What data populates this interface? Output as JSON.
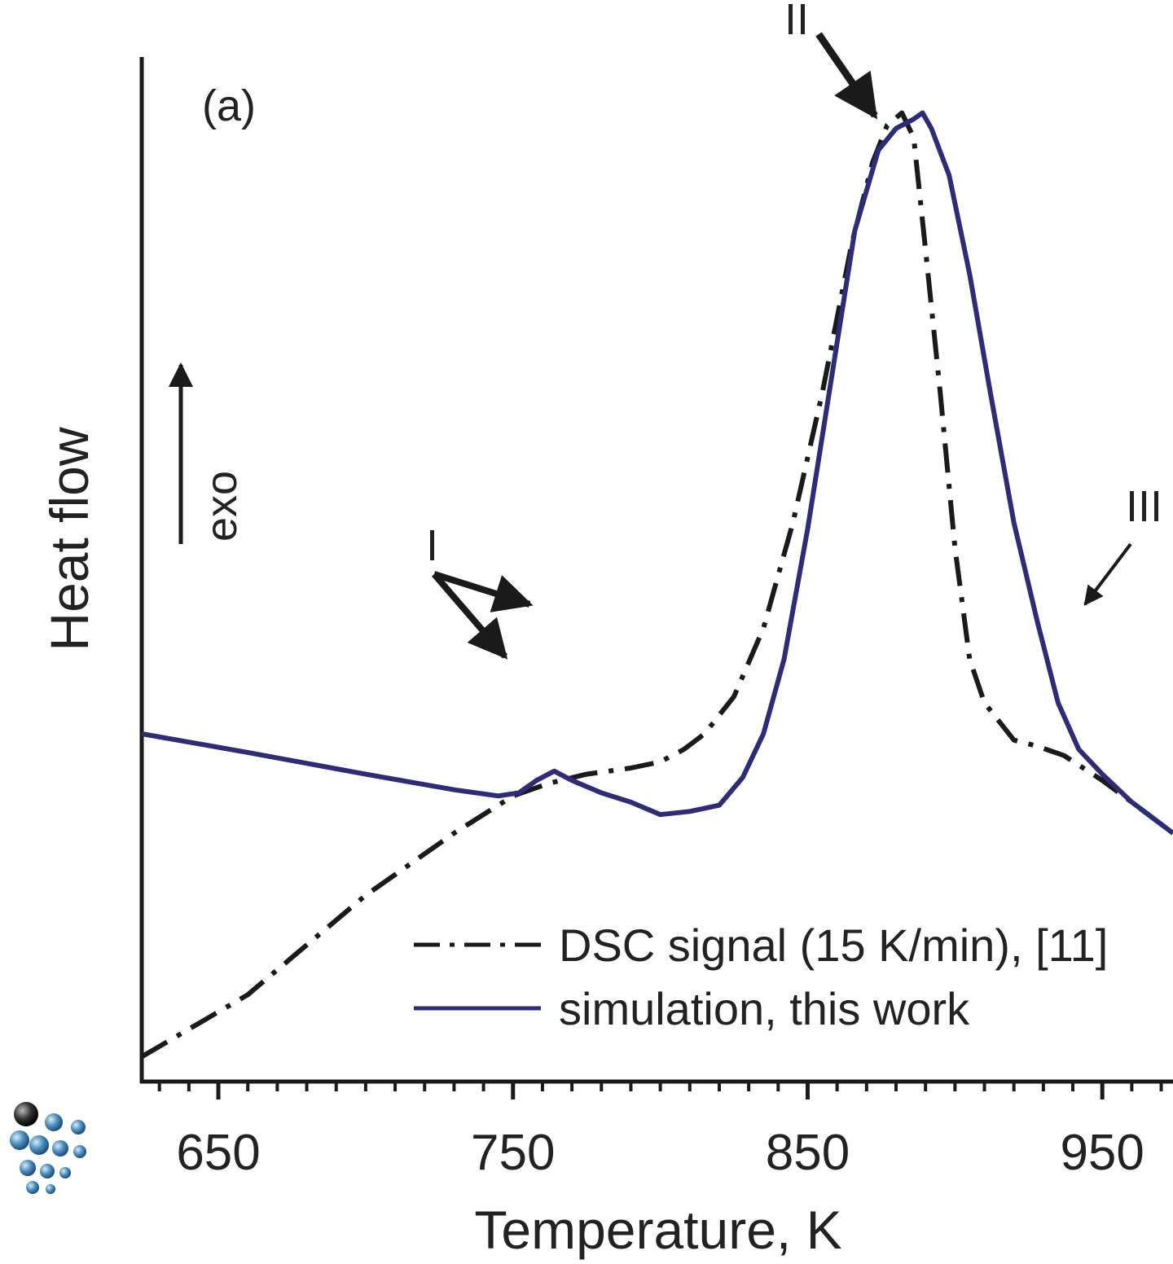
{
  "chart_data": {
    "type": "line",
    "panel_label": "(a)",
    "xlabel": "Temperature, K",
    "ylabel": "Heat flow",
    "direction_label": "exo",
    "xlim": [
      624,
      974
    ],
    "xticks": [
      650,
      750,
      850,
      950
    ],
    "minor_tick_step": 10,
    "y_units_shown": false,
    "grid": false,
    "legend_position": "bottom-right",
    "series": [
      {
        "name": "DSC signal (15 K/min), [11]",
        "style": "dash-dot",
        "color": "#1a1a1a",
        "x": [
          624,
          660,
          700,
          730,
          750,
          762,
          775,
          790,
          800,
          808,
          815,
          825,
          835,
          845,
          855,
          865,
          872,
          877,
          882,
          886,
          890,
          895,
          900,
          905,
          910,
          915,
          920,
          928,
          937,
          950,
          960,
          974
        ],
        "y": [
          -0.52,
          -0.42,
          -0.26,
          -0.16,
          -0.1,
          -0.08,
          -0.065,
          -0.055,
          -0.045,
          -0.025,
          0.0,
          0.06,
          0.17,
          0.34,
          0.55,
          0.79,
          0.92,
          0.98,
          1.0,
          0.96,
          0.78,
          0.55,
          0.3,
          0.12,
          0.05,
          0.02,
          -0.01,
          -0.02,
          -0.035,
          -0.075,
          -0.11,
          -0.16
        ]
      },
      {
        "name": "simulation, this work",
        "style": "solid",
        "color": "#2c2c78",
        "x": [
          624,
          660,
          700,
          730,
          745,
          752,
          758,
          764,
          770,
          780,
          790,
          800,
          810,
          820,
          828,
          835,
          842,
          850,
          858,
          866,
          874,
          880,
          886,
          889,
          892,
          898,
          905,
          912,
          920,
          928,
          935,
          942,
          950,
          960,
          974
        ],
        "y": [
          0.0,
          -0.03,
          -0.065,
          -0.09,
          -0.1,
          -0.095,
          -0.075,
          -0.06,
          -0.075,
          -0.095,
          -0.11,
          -0.13,
          -0.125,
          -0.115,
          -0.07,
          0.0,
          0.12,
          0.33,
          0.57,
          0.81,
          0.94,
          0.975,
          0.99,
          1.0,
          0.975,
          0.9,
          0.74,
          0.55,
          0.34,
          0.18,
          0.05,
          -0.025,
          -0.065,
          -0.11,
          -0.16
        ]
      }
    ],
    "ylim": [
      -0.56,
      1.09
    ],
    "annotations": [
      {
        "text": "I",
        "x": 727,
        "y": 0.085
      },
      {
        "text": "II",
        "x": 859,
        "y": 1.13
      },
      {
        "text": "III",
        "x": 965,
        "y": 0.135
      }
    ]
  }
}
